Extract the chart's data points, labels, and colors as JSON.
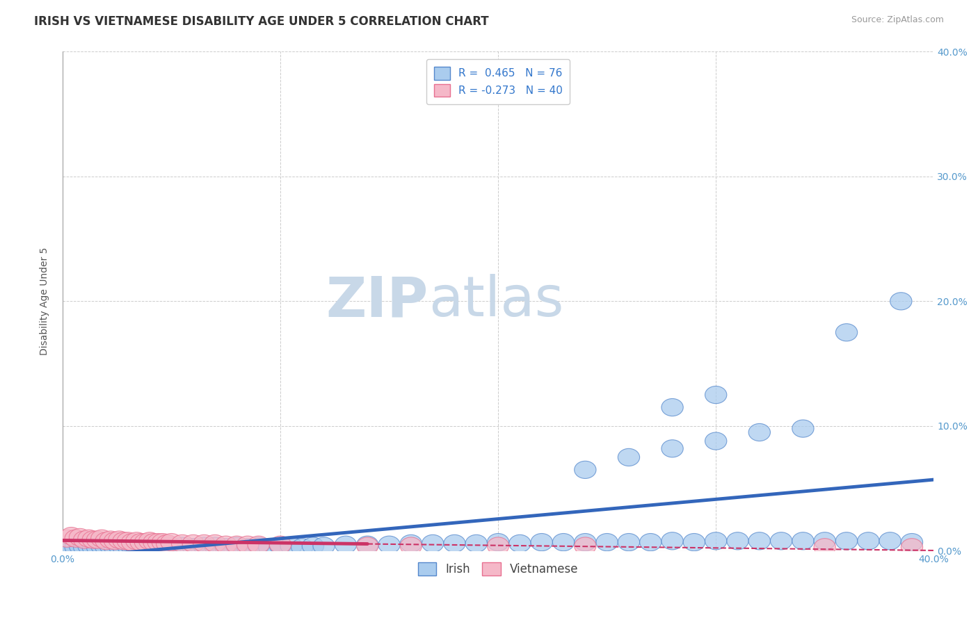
{
  "title": "IRISH VS VIETNAMESE DISABILITY AGE UNDER 5 CORRELATION CHART",
  "source": "Source: ZipAtlas.com",
  "ylabel": "Disability Age Under 5",
  "xlim": [
    0.0,
    0.4
  ],
  "ylim": [
    0.0,
    0.4
  ],
  "x_ticks": [
    0.0,
    0.1,
    0.2,
    0.3,
    0.4
  ],
  "x_tick_labels": [
    "0.0%",
    "",
    "",
    "",
    "40.0%"
  ],
  "y_ticks": [
    0.0,
    0.1,
    0.2,
    0.3,
    0.4
  ],
  "right_y_tick_labels": [
    "0.0%",
    "10.0%",
    "20.0%",
    "30.0%",
    "40.0%"
  ],
  "irish_R": 0.465,
  "irish_N": 76,
  "viet_R": -0.273,
  "viet_N": 40,
  "irish_color": "#aaccee",
  "irish_edge_color": "#5588cc",
  "irish_line_color": "#3366bb",
  "viet_color": "#f5b8c8",
  "viet_edge_color": "#e87090",
  "viet_line_color": "#cc3366",
  "irish_scatter_x": [
    0.002,
    0.004,
    0.006,
    0.008,
    0.01,
    0.012,
    0.014,
    0.016,
    0.018,
    0.02,
    0.022,
    0.024,
    0.026,
    0.028,
    0.03,
    0.032,
    0.034,
    0.036,
    0.038,
    0.04,
    0.042,
    0.044,
    0.046,
    0.048,
    0.05,
    0.055,
    0.06,
    0.065,
    0.07,
    0.075,
    0.08,
    0.085,
    0.09,
    0.095,
    0.1,
    0.105,
    0.11,
    0.115,
    0.12,
    0.13,
    0.14,
    0.15,
    0.16,
    0.17,
    0.18,
    0.19,
    0.2,
    0.21,
    0.22,
    0.23,
    0.24,
    0.25,
    0.26,
    0.27,
    0.28,
    0.29,
    0.3,
    0.31,
    0.32,
    0.33,
    0.34,
    0.35,
    0.36,
    0.37,
    0.38,
    0.39,
    0.24,
    0.26,
    0.28,
    0.3,
    0.32,
    0.34,
    0.28,
    0.3,
    0.36,
    0.385
  ],
  "irish_scatter_y": [
    0.002,
    0.003,
    0.003,
    0.004,
    0.003,
    0.004,
    0.003,
    0.003,
    0.004,
    0.003,
    0.004,
    0.003,
    0.004,
    0.003,
    0.004,
    0.003,
    0.003,
    0.004,
    0.003,
    0.004,
    0.003,
    0.003,
    0.004,
    0.003,
    0.004,
    0.004,
    0.003,
    0.004,
    0.004,
    0.003,
    0.004,
    0.003,
    0.004,
    0.003,
    0.004,
    0.004,
    0.003,
    0.004,
    0.004,
    0.005,
    0.005,
    0.005,
    0.006,
    0.006,
    0.006,
    0.006,
    0.007,
    0.006,
    0.007,
    0.007,
    0.007,
    0.007,
    0.007,
    0.007,
    0.008,
    0.007,
    0.008,
    0.008,
    0.008,
    0.008,
    0.008,
    0.008,
    0.008,
    0.008,
    0.008,
    0.007,
    0.065,
    0.075,
    0.082,
    0.088,
    0.095,
    0.098,
    0.115,
    0.125,
    0.175,
    0.2
  ],
  "viet_scatter_x": [
    0.002,
    0.004,
    0.006,
    0.008,
    0.01,
    0.012,
    0.014,
    0.016,
    0.018,
    0.02,
    0.022,
    0.024,
    0.026,
    0.028,
    0.03,
    0.032,
    0.034,
    0.036,
    0.038,
    0.04,
    0.042,
    0.044,
    0.046,
    0.048,
    0.05,
    0.055,
    0.06,
    0.065,
    0.07,
    0.075,
    0.08,
    0.085,
    0.09,
    0.1,
    0.14,
    0.16,
    0.2,
    0.24,
    0.35,
    0.39
  ],
  "viet_scatter_y": [
    0.01,
    0.012,
    0.01,
    0.011,
    0.009,
    0.01,
    0.009,
    0.009,
    0.01,
    0.008,
    0.009,
    0.008,
    0.009,
    0.008,
    0.008,
    0.007,
    0.008,
    0.007,
    0.007,
    0.008,
    0.007,
    0.007,
    0.007,
    0.006,
    0.007,
    0.006,
    0.006,
    0.006,
    0.006,
    0.005,
    0.005,
    0.005,
    0.005,
    0.005,
    0.004,
    0.004,
    0.004,
    0.004,
    0.003,
    0.003
  ],
  "background_color": "#ffffff",
  "grid_color": "#cccccc",
  "title_fontsize": 12,
  "axis_label_fontsize": 10,
  "tick_fontsize": 10,
  "legend_fontsize": 11,
  "watermark_zip": "ZIP",
  "watermark_atlas": "atlas",
  "watermark_color_zip": "#c8d8e8",
  "watermark_color_atlas": "#c8d8e8",
  "watermark_fontsize": 58
}
